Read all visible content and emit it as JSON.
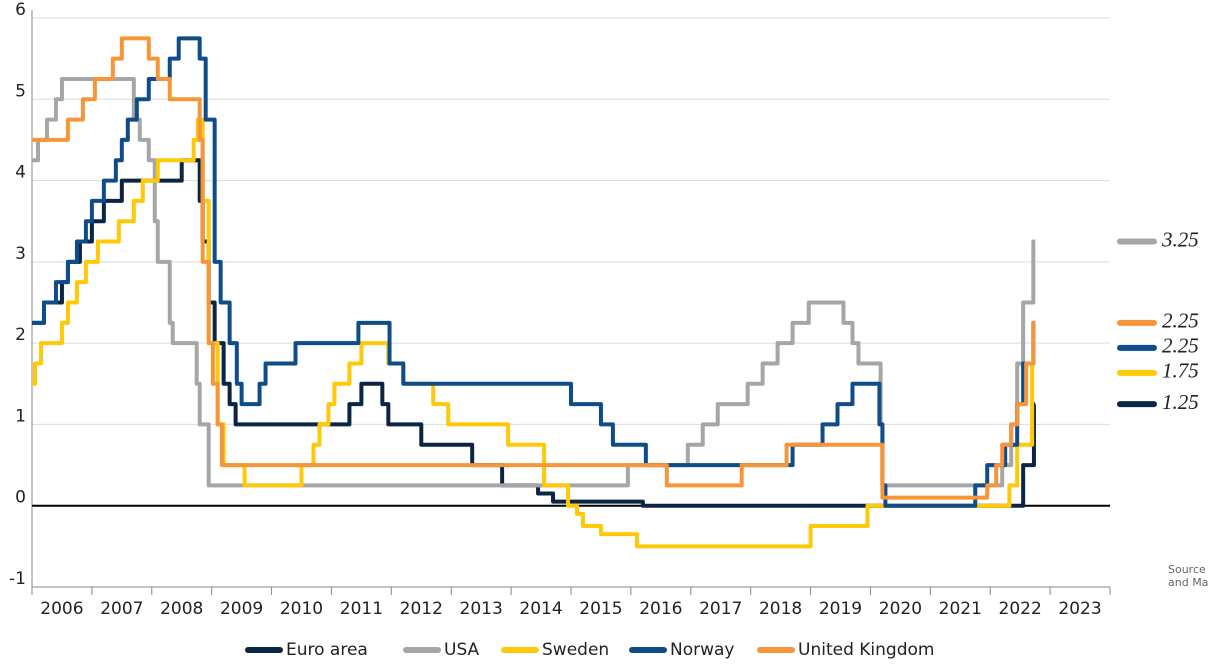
{
  "chart_data": {
    "type": "line",
    "step": "post",
    "xlim": [
      2006,
      2024
    ],
    "ylim": [
      -1,
      6
    ],
    "yticks": [
      -1,
      0,
      1,
      2,
      3,
      4,
      5,
      6
    ],
    "grid": true,
    "xticks": [
      {
        "value": 2006.5,
        "label": "2006"
      },
      {
        "value": 2007.5,
        "label": "2007"
      },
      {
        "value": 2008.5,
        "label": "2008"
      },
      {
        "value": 2009.5,
        "label": "2009"
      },
      {
        "value": 2010.5,
        "label": "2010"
      },
      {
        "value": 2011.5,
        "label": "2011"
      },
      {
        "value": 2012.5,
        "label": "2012"
      },
      {
        "value": 2013.5,
        "label": "2013"
      },
      {
        "value": 2014.5,
        "label": "2014"
      },
      {
        "value": 2015.5,
        "label": "2015"
      },
      {
        "value": 2016.5,
        "label": "2016"
      },
      {
        "value": 2017.5,
        "label": "2017"
      },
      {
        "value": 2018.5,
        "label": "2018"
      },
      {
        "value": 2019.5,
        "label": "2019"
      },
      {
        "value": 2020.5,
        "label": "2020"
      },
      {
        "value": 2021.5,
        "label": "2021"
      },
      {
        "value": 2022.5,
        "label": "2022"
      },
      {
        "value": 2023.5,
        "label": "2023"
      }
    ],
    "legend": "bottom",
    "source": [
      "Source",
      "and Ma"
    ],
    "series": [
      {
        "name": "Euro area",
        "color": "#0b2545",
        "x": [
          2006.0,
          2006.2,
          2006.5,
          2006.6,
          2006.8,
          2007.0,
          2007.2,
          2007.5,
          2008.5,
          2008.8,
          2008.85,
          2008.95,
          2009.05,
          2009.2,
          2009.3,
          2009.4,
          2011.3,
          2011.5,
          2011.85,
          2011.95,
          2012.5,
          2013.35,
          2013.85,
          2014.45,
          2014.7,
          2016.2,
          2022.55,
          2022.73,
          2022.75
        ],
        "values": [
          2.25,
          2.5,
          2.75,
          3.0,
          3.25,
          3.5,
          3.75,
          4.0,
          4.25,
          3.75,
          3.25,
          2.5,
          2.0,
          1.5,
          1.25,
          1.0,
          1.25,
          1.5,
          1.25,
          1.0,
          0.75,
          0.5,
          0.25,
          0.15,
          0.05,
          0.0,
          0.5,
          1.25,
          1.25
        ]
      },
      {
        "name": "USA",
        "color": "#a6a6a6",
        "x": [
          2006.0,
          2006.1,
          2006.25,
          2006.4,
          2006.5,
          2007.7,
          2007.8,
          2007.95,
          2008.05,
          2008.1,
          2008.3,
          2008.35,
          2008.75,
          2008.8,
          2008.95,
          2015.95,
          2016.95,
          2017.2,
          2017.45,
          2017.95,
          2018.2,
          2018.45,
          2018.7,
          2018.97,
          2019.55,
          2019.7,
          2019.8,
          2020.17,
          2020.2,
          2022.2,
          2022.35,
          2022.45,
          2022.55,
          2022.72,
          2022.75
        ],
        "values": [
          4.25,
          4.5,
          4.75,
          5.0,
          5.25,
          4.75,
          4.5,
          4.25,
          3.5,
          3.0,
          2.25,
          2.0,
          1.5,
          1.0,
          0.25,
          0.5,
          0.75,
          1.0,
          1.25,
          1.5,
          1.75,
          2.0,
          2.25,
          2.5,
          2.25,
          2.0,
          1.75,
          1.0,
          0.25,
          0.5,
          1.0,
          1.75,
          2.5,
          3.25,
          3.25
        ]
      },
      {
        "name": "Sweden",
        "color": "#ffc907",
        "x": [
          2006.0,
          2006.05,
          2006.15,
          2006.5,
          2006.6,
          2006.75,
          2006.9,
          2007.1,
          2007.45,
          2007.7,
          2007.85,
          2008.1,
          2008.7,
          2008.77,
          2008.85,
          2008.95,
          2009.1,
          2009.2,
          2009.55,
          2010.5,
          2010.7,
          2010.8,
          2010.95,
          2011.05,
          2011.3,
          2011.5,
          2011.95,
          2012.2,
          2012.7,
          2012.95,
          2013.95,
          2014.55,
          2014.95,
          2015.1,
          2015.2,
          2015.5,
          2016.1,
          2019.0,
          2019.95,
          2022.32,
          2022.45,
          2022.7,
          2022.75
        ],
        "values": [
          1.5,
          1.75,
          2.0,
          2.25,
          2.5,
          2.75,
          3.0,
          3.25,
          3.5,
          3.75,
          4.0,
          4.25,
          4.5,
          4.75,
          3.75,
          2.0,
          1.0,
          0.5,
          0.25,
          0.5,
          0.75,
          1.0,
          1.25,
          1.5,
          1.75,
          2.0,
          1.75,
          1.5,
          1.25,
          1.0,
          0.75,
          0.25,
          0.0,
          -0.1,
          -0.25,
          -0.35,
          -0.5,
          -0.25,
          0.0,
          0.25,
          0.75,
          1.75,
          1.75
        ]
      },
      {
        "name": "Norway",
        "color": "#0f4c8a",
        "x": [
          2006.0,
          2006.2,
          2006.4,
          2006.6,
          2006.75,
          2006.9,
          2007.0,
          2007.2,
          2007.4,
          2007.5,
          2007.6,
          2007.75,
          2007.95,
          2008.3,
          2008.45,
          2008.8,
          2008.9,
          2009.05,
          2009.15,
          2009.3,
          2009.42,
          2009.5,
          2009.8,
          2009.9,
          2010.4,
          2011.45,
          2011.97,
          2012.2,
          2015.0,
          2015.5,
          2015.7,
          2016.25,
          2018.7,
          2019.2,
          2019.45,
          2019.7,
          2020.15,
          2020.2,
          2020.25,
          2021.75,
          2021.95,
          2022.25,
          2022.45,
          2022.55,
          2022.72,
          2022.75
        ],
        "values": [
          2.25,
          2.5,
          2.75,
          3.0,
          3.25,
          3.5,
          3.75,
          4.0,
          4.25,
          4.5,
          4.75,
          5.0,
          5.25,
          5.5,
          5.75,
          5.5,
          4.75,
          3.0,
          2.5,
          2.0,
          1.5,
          1.25,
          1.5,
          1.75,
          2.0,
          2.25,
          1.75,
          1.5,
          1.25,
          1.0,
          0.75,
          0.5,
          0.75,
          1.0,
          1.25,
          1.5,
          1.0,
          0.25,
          0.0,
          0.25,
          0.5,
          0.75,
          1.25,
          1.75,
          2.25,
          2.25
        ]
      },
      {
        "name": "United Kingdom",
        "color": "#f5963a",
        "x": [
          2006.0,
          2006.6,
          2006.85,
          2007.05,
          2007.35,
          2007.5,
          2007.95,
          2008.1,
          2008.3,
          2008.8,
          2008.85,
          2008.95,
          2009.02,
          2009.1,
          2009.17,
          2016.6,
          2017.85,
          2018.6,
          2020.2,
          2021.95,
          2022.1,
          2022.2,
          2022.35,
          2022.45,
          2022.6,
          2022.72,
          2022.75
        ],
        "values": [
          4.5,
          4.75,
          5.0,
          5.25,
          5.5,
          5.75,
          5.5,
          5.25,
          5.0,
          4.5,
          3.0,
          2.0,
          1.5,
          1.0,
          0.5,
          0.25,
          0.5,
          0.75,
          0.1,
          0.25,
          0.5,
          0.75,
          1.0,
          1.25,
          1.75,
          2.25,
          2.25
        ]
      }
    ]
  }
}
